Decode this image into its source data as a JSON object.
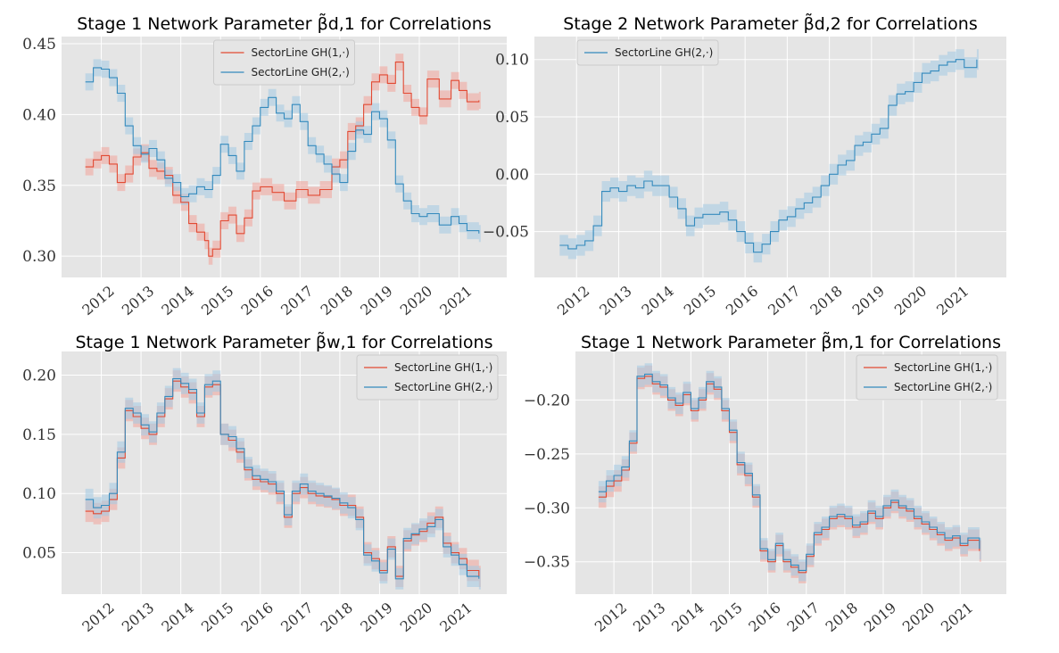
{
  "chart_data": [
    {
      "type": "line",
      "title": "Stage 1 Network Parameter β̃d,1 for Correlations",
      "ylim": [
        0.285,
        0.455
      ],
      "xlim": [
        2011.0,
        2022.2
      ],
      "yticks": [
        0.3,
        0.35,
        0.4,
        0.45
      ],
      "ytick_labels": [
        "0.30",
        "0.35",
        "0.40",
        "0.45"
      ],
      "xticks": [
        2012,
        2013,
        2014,
        2015,
        2016,
        2017,
        2018,
        2019,
        2020,
        2021
      ],
      "xtick_labels": [
        "2012",
        "2013",
        "2014",
        "2015",
        "2016",
        "2017",
        "2018",
        "2019",
        "2020",
        "2021"
      ],
      "grid": true,
      "legend": "top-center",
      "band_halfwidth": 0.006,
      "series": [
        {
          "name": "SectorLine GH(1,·)",
          "color": "#e24a33",
          "band_color": "#f0a8a0",
          "x": [
            2011.6,
            2011.8,
            2012.0,
            2012.2,
            2012.4,
            2012.6,
            2012.8,
            2013.0,
            2013.2,
            2013.4,
            2013.6,
            2013.8,
            2014.0,
            2014.2,
            2014.4,
            2014.6,
            2014.7,
            2014.8,
            2015.0,
            2015.2,
            2015.4,
            2015.6,
            2015.8,
            2016.0,
            2016.3,
            2016.6,
            2016.9,
            2017.2,
            2017.5,
            2017.8,
            2018.0,
            2018.2,
            2018.4,
            2018.6,
            2018.8,
            2019.0,
            2019.2,
            2019.4,
            2019.6,
            2019.8,
            2020.0,
            2020.2,
            2020.5,
            2020.8,
            2021.0,
            2021.2,
            2021.5
          ],
          "y": [
            0.363,
            0.368,
            0.371,
            0.365,
            0.352,
            0.358,
            0.37,
            0.373,
            0.362,
            0.36,
            0.357,
            0.343,
            0.338,
            0.323,
            0.317,
            0.311,
            0.3,
            0.305,
            0.325,
            0.329,
            0.316,
            0.327,
            0.346,
            0.349,
            0.345,
            0.339,
            0.347,
            0.343,
            0.347,
            0.363,
            0.368,
            0.388,
            0.392,
            0.407,
            0.423,
            0.428,
            0.422,
            0.437,
            0.415,
            0.405,
            0.399,
            0.425,
            0.411,
            0.424,
            0.417,
            0.409,
            0.41
          ]
        },
        {
          "name": "SectorLine GH(2,·)",
          "color": "#348abd",
          "band_color": "#a9cce3",
          "x": [
            2011.6,
            2011.8,
            2012.0,
            2012.2,
            2012.4,
            2012.6,
            2012.8,
            2013.0,
            2013.2,
            2013.4,
            2013.6,
            2013.8,
            2014.0,
            2014.2,
            2014.4,
            2014.6,
            2014.8,
            2015.0,
            2015.2,
            2015.4,
            2015.6,
            2015.8,
            2016.0,
            2016.2,
            2016.4,
            2016.6,
            2016.8,
            2017.0,
            2017.2,
            2017.4,
            2017.6,
            2017.8,
            2018.0,
            2018.2,
            2018.4,
            2018.6,
            2018.8,
            2019.0,
            2019.2,
            2019.4,
            2019.6,
            2019.8,
            2020.0,
            2020.2,
            2020.5,
            2020.8,
            2021.0,
            2021.2,
            2021.5
          ],
          "y": [
            0.423,
            0.433,
            0.432,
            0.426,
            0.415,
            0.392,
            0.378,
            0.372,
            0.376,
            0.368,
            0.355,
            0.352,
            0.342,
            0.344,
            0.349,
            0.347,
            0.357,
            0.379,
            0.371,
            0.36,
            0.381,
            0.392,
            0.405,
            0.412,
            0.401,
            0.397,
            0.407,
            0.395,
            0.378,
            0.372,
            0.365,
            0.358,
            0.352,
            0.374,
            0.389,
            0.386,
            0.402,
            0.397,
            0.382,
            0.351,
            0.339,
            0.33,
            0.328,
            0.33,
            0.322,
            0.328,
            0.323,
            0.318,
            0.316
          ]
        }
      ]
    },
    {
      "type": "line",
      "title": "Stage 2 Network Parameter β̃d,2 for Correlations",
      "ylim": [
        -0.09,
        0.12
      ],
      "xlim": [
        2011.0,
        2022.2
      ],
      "yticks": [
        -0.05,
        0.0,
        0.05,
        0.1
      ],
      "ytick_labels": [
        "−0.05",
        "0.00",
        "0.05",
        "0.10"
      ],
      "xticks": [
        2012,
        2013,
        2014,
        2015,
        2016,
        2017,
        2018,
        2019,
        2020,
        2021
      ],
      "xtick_labels": [
        "2012",
        "2013",
        "2014",
        "2015",
        "2016",
        "2017",
        "2018",
        "2019",
        "2020",
        "2021"
      ],
      "grid": true,
      "legend": "top-left",
      "band_halfwidth": 0.009,
      "series": [
        {
          "name": "SectorLine GH(2,·)",
          "color": "#348abd",
          "band_color": "#a9cce3",
          "x": [
            2011.6,
            2011.8,
            2012.0,
            2012.2,
            2012.4,
            2012.6,
            2012.8,
            2013.0,
            2013.2,
            2013.4,
            2013.6,
            2013.8,
            2014.0,
            2014.2,
            2014.4,
            2014.6,
            2014.8,
            2015.0,
            2015.2,
            2015.4,
            2015.6,
            2015.8,
            2016.0,
            2016.2,
            2016.4,
            2016.6,
            2016.8,
            2017.0,
            2017.2,
            2017.4,
            2017.6,
            2017.8,
            2018.0,
            2018.2,
            2018.4,
            2018.6,
            2018.8,
            2019.0,
            2019.2,
            2019.4,
            2019.6,
            2019.8,
            2020.0,
            2020.2,
            2020.4,
            2020.6,
            2020.8,
            2021.0,
            2021.2,
            2021.5
          ],
          "y": [
            -0.062,
            -0.065,
            -0.062,
            -0.058,
            -0.045,
            -0.015,
            -0.012,
            -0.015,
            -0.01,
            -0.012,
            -0.006,
            -0.01,
            -0.01,
            -0.02,
            -0.03,
            -0.045,
            -0.038,
            -0.035,
            -0.035,
            -0.033,
            -0.04,
            -0.05,
            -0.06,
            -0.068,
            -0.061,
            -0.05,
            -0.04,
            -0.037,
            -0.03,
            -0.025,
            -0.02,
            -0.01,
            0.0,
            0.008,
            0.012,
            0.025,
            0.028,
            0.035,
            0.04,
            0.06,
            0.07,
            0.072,
            0.08,
            0.088,
            0.09,
            0.095,
            0.098,
            0.1,
            0.093,
            0.1
          ]
        }
      ]
    },
    {
      "type": "line",
      "title": "Stage 1 Network Parameter β̃w,1 for Correlations",
      "ylim": [
        0.015,
        0.22
      ],
      "xlim": [
        2011.0,
        2022.2
      ],
      "yticks": [
        0.05,
        0.1,
        0.15,
        0.2
      ],
      "ytick_labels": [
        "0.05",
        "0.10",
        "0.15",
        "0.20"
      ],
      "xticks": [
        2012,
        2013,
        2014,
        2015,
        2016,
        2017,
        2018,
        2019,
        2020,
        2021
      ],
      "xtick_labels": [
        "2012",
        "2013",
        "2014",
        "2015",
        "2016",
        "2017",
        "2018",
        "2019",
        "2020",
        "2021"
      ],
      "grid": true,
      "legend": "top-right",
      "band_halfwidth": 0.009,
      "series": [
        {
          "name": "SectorLine GH(1,·)",
          "color": "#e24a33",
          "band_color": "#f0a8a0",
          "x": [
            2011.6,
            2011.8,
            2012.0,
            2012.2,
            2012.4,
            2012.6,
            2012.8,
            2013.0,
            2013.2,
            2013.4,
            2013.6,
            2013.8,
            2014.0,
            2014.2,
            2014.4,
            2014.6,
            2014.8,
            2015.0,
            2015.2,
            2015.4,
            2015.6,
            2015.8,
            2016.0,
            2016.2,
            2016.4,
            2016.6,
            2016.8,
            2017.0,
            2017.2,
            2017.4,
            2017.6,
            2017.8,
            2018.0,
            2018.2,
            2018.4,
            2018.6,
            2018.8,
            2019.0,
            2019.2,
            2019.4,
            2019.6,
            2019.8,
            2020.0,
            2020.2,
            2020.4,
            2020.6,
            2020.8,
            2021.0,
            2021.2,
            2021.5
          ],
          "y": [
            0.085,
            0.083,
            0.085,
            0.095,
            0.13,
            0.17,
            0.165,
            0.155,
            0.15,
            0.165,
            0.18,
            0.195,
            0.19,
            0.185,
            0.165,
            0.19,
            0.192,
            0.15,
            0.145,
            0.135,
            0.12,
            0.112,
            0.11,
            0.108,
            0.1,
            0.08,
            0.1,
            0.105,
            0.1,
            0.098,
            0.097,
            0.095,
            0.09,
            0.09,
            0.08,
            0.05,
            0.045,
            0.035,
            0.055,
            0.03,
            0.06,
            0.065,
            0.068,
            0.075,
            0.08,
            0.058,
            0.05,
            0.045,
            0.035,
            0.03
          ]
        },
        {
          "name": "SectorLine GH(2,·)",
          "color": "#348abd",
          "band_color": "#a9cce3",
          "x": [
            2011.6,
            2011.8,
            2012.0,
            2012.2,
            2012.4,
            2012.6,
            2012.8,
            2013.0,
            2013.2,
            2013.4,
            2013.6,
            2013.8,
            2014.0,
            2014.2,
            2014.4,
            2014.6,
            2014.8,
            2015.0,
            2015.2,
            2015.4,
            2015.6,
            2015.8,
            2016.0,
            2016.2,
            2016.4,
            2016.6,
            2016.8,
            2017.0,
            2017.2,
            2017.4,
            2017.6,
            2017.8,
            2018.0,
            2018.2,
            2018.4,
            2018.6,
            2018.8,
            2019.0,
            2019.2,
            2019.4,
            2019.6,
            2019.8,
            2020.0,
            2020.2,
            2020.4,
            2020.6,
            2020.8,
            2021.0,
            2021.2,
            2021.5
          ],
          "y": [
            0.095,
            0.088,
            0.09,
            0.1,
            0.135,
            0.172,
            0.168,
            0.158,
            0.152,
            0.168,
            0.182,
            0.197,
            0.193,
            0.188,
            0.168,
            0.192,
            0.195,
            0.15,
            0.148,
            0.138,
            0.122,
            0.115,
            0.112,
            0.11,
            0.102,
            0.082,
            0.102,
            0.108,
            0.102,
            0.1,
            0.098,
            0.096,
            0.092,
            0.088,
            0.078,
            0.048,
            0.043,
            0.033,
            0.053,
            0.028,
            0.062,
            0.066,
            0.07,
            0.072,
            0.078,
            0.055,
            0.048,
            0.04,
            0.03,
            0.028
          ]
        }
      ]
    },
    {
      "type": "line",
      "title": "Stage 1 Network Parameter β̃m,1 for Correlations",
      "ylim": [
        -0.38,
        -0.155
      ],
      "xlim": [
        2011.0,
        2022.2
      ],
      "yticks": [
        -0.35,
        -0.3,
        -0.25,
        -0.2
      ],
      "ytick_labels": [
        "−0.35",
        "−0.30",
        "−0.25",
        "−0.20"
      ],
      "xticks": [
        2012,
        2013,
        2014,
        2015,
        2016,
        2017,
        2018,
        2019,
        2020,
        2021
      ],
      "xtick_labels": [
        "2012",
        "2013",
        "2014",
        "2015",
        "2016",
        "2017",
        "2018",
        "2019",
        "2020",
        "2021"
      ],
      "grid": true,
      "legend": "top-right",
      "band_halfwidth": 0.01,
      "series": [
        {
          "name": "SectorLine GH(1,·)",
          "color": "#e24a33",
          "band_color": "#f0a8a0",
          "x": [
            2011.6,
            2011.8,
            2012.0,
            2012.2,
            2012.4,
            2012.6,
            2012.8,
            2013.0,
            2013.2,
            2013.4,
            2013.6,
            2013.8,
            2014.0,
            2014.2,
            2014.4,
            2014.6,
            2014.8,
            2015.0,
            2015.2,
            2015.4,
            2015.6,
            2015.8,
            2016.0,
            2016.2,
            2016.4,
            2016.6,
            2016.8,
            2017.0,
            2017.2,
            2017.4,
            2017.6,
            2017.8,
            2018.0,
            2018.2,
            2018.4,
            2018.6,
            2018.8,
            2019.0,
            2019.2,
            2019.4,
            2019.6,
            2019.8,
            2020.0,
            2020.2,
            2020.4,
            2020.6,
            2020.8,
            2021.0,
            2021.2,
            2021.5
          ],
          "y": [
            -0.29,
            -0.28,
            -0.275,
            -0.265,
            -0.24,
            -0.18,
            -0.178,
            -0.185,
            -0.188,
            -0.2,
            -0.205,
            -0.195,
            -0.21,
            -0.2,
            -0.185,
            -0.19,
            -0.21,
            -0.23,
            -0.26,
            -0.27,
            -0.29,
            -0.34,
            -0.35,
            -0.335,
            -0.35,
            -0.355,
            -0.36,
            -0.345,
            -0.325,
            -0.32,
            -0.31,
            -0.308,
            -0.31,
            -0.318,
            -0.315,
            -0.305,
            -0.31,
            -0.3,
            -0.295,
            -0.3,
            -0.303,
            -0.31,
            -0.315,
            -0.32,
            -0.325,
            -0.33,
            -0.328,
            -0.335,
            -0.33,
            -0.34
          ]
        },
        {
          "name": "SectorLine GH(2,·)",
          "color": "#348abd",
          "band_color": "#a9cce3",
          "x": [
            2011.6,
            2011.8,
            2012.0,
            2012.2,
            2012.4,
            2012.6,
            2012.8,
            2013.0,
            2013.2,
            2013.4,
            2013.6,
            2013.8,
            2014.0,
            2014.2,
            2014.4,
            2014.6,
            2014.8,
            2015.0,
            2015.2,
            2015.4,
            2015.6,
            2015.8,
            2016.0,
            2016.2,
            2016.4,
            2016.6,
            2016.8,
            2017.0,
            2017.2,
            2017.4,
            2017.6,
            2017.8,
            2018.0,
            2018.2,
            2018.4,
            2018.6,
            2018.8,
            2019.0,
            2019.2,
            2019.4,
            2019.6,
            2019.8,
            2020.0,
            2020.2,
            2020.4,
            2020.6,
            2020.8,
            2021.0,
            2021.2,
            2021.5
          ],
          "y": [
            -0.285,
            -0.275,
            -0.27,
            -0.262,
            -0.238,
            -0.178,
            -0.176,
            -0.183,
            -0.186,
            -0.198,
            -0.203,
            -0.193,
            -0.208,
            -0.198,
            -0.183,
            -0.188,
            -0.208,
            -0.228,
            -0.258,
            -0.268,
            -0.288,
            -0.338,
            -0.348,
            -0.333,
            -0.348,
            -0.353,
            -0.358,
            -0.343,
            -0.323,
            -0.318,
            -0.308,
            -0.306,
            -0.308,
            -0.316,
            -0.313,
            -0.303,
            -0.308,
            -0.298,
            -0.293,
            -0.298,
            -0.301,
            -0.308,
            -0.313,
            -0.318,
            -0.323,
            -0.328,
            -0.326,
            -0.333,
            -0.328,
            -0.338
          ]
        }
      ]
    }
  ]
}
